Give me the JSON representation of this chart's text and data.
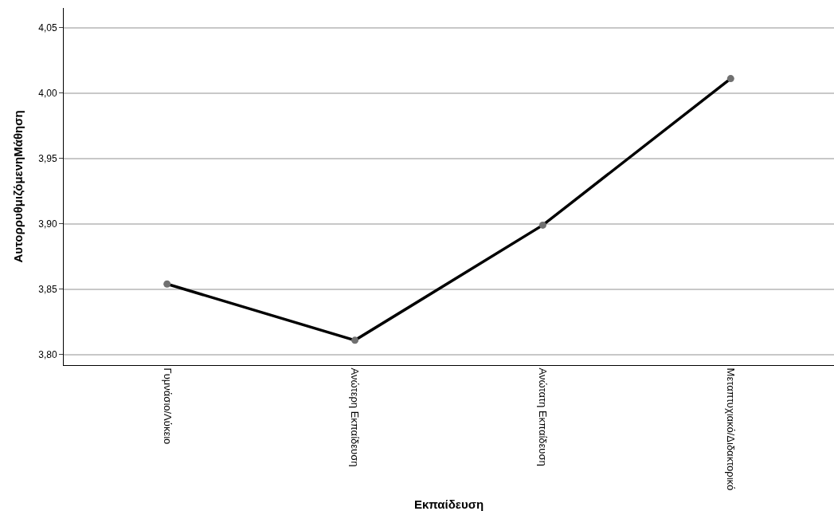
{
  "chart_data": {
    "type": "line",
    "xlabel": "Εκπαίδευση",
    "ylabel": "ΑυτορρυθμιζόμενηΜάθηση",
    "categories": [
      "Γυμνάσιο/Λύκειο",
      "Ανώτερη Εκπαίδευση",
      "Ανώτατη Εκπαίδευση",
      "Μεταπτυχιακό/Διδακτορικό"
    ],
    "series": [
      {
        "color": "#000000",
        "values": [
          3.854,
          3.811,
          3.899,
          4.011
        ]
      }
    ],
    "ylim": [
      3.792,
      4.065
    ],
    "yticks": [
      {
        "value": 3.8,
        "label": "3,80"
      },
      {
        "value": 3.85,
        "label": "3,85"
      },
      {
        "value": 3.9,
        "label": "3,90"
      },
      {
        "value": 3.95,
        "label": "3,95"
      },
      {
        "value": 4.0,
        "label": "4,00"
      },
      {
        "value": 4.05,
        "label": "4,05"
      }
    ],
    "grid": "y",
    "marker": "circle",
    "line_style": "solid"
  }
}
